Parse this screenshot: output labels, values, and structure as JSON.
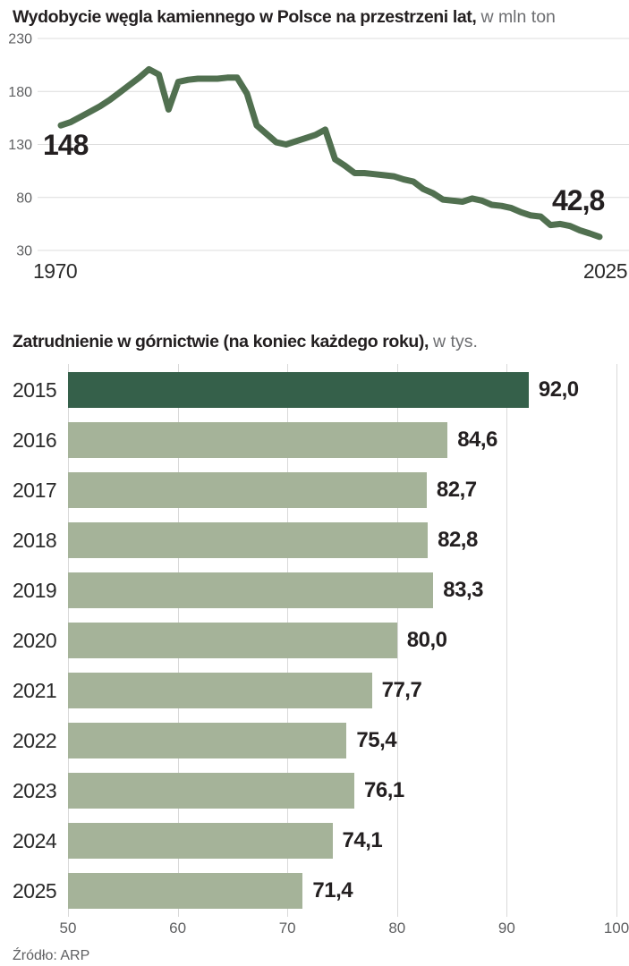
{
  "source": "Źródło: ARP",
  "chart_data": [
    {
      "type": "line",
      "title": "Wydobycie węgla kamiennego w Polsce na przestrzeni lat,",
      "unit": "w mln ton",
      "xlabel": "",
      "ylabel": "",
      "xlim": [
        1970,
        2025
      ],
      "ylim": [
        30,
        230
      ],
      "y_ticks": [
        230,
        180,
        130,
        80,
        30
      ],
      "x_tick_labels": [
        "1970",
        "2025"
      ],
      "grid": true,
      "legend": "none",
      "line_color": "#517050",
      "first_point_label": "148",
      "last_point_label": "42,8",
      "x": [
        1970,
        1971,
        1972,
        1973,
        1974,
        1975,
        1976,
        1977,
        1978,
        1979,
        1980,
        1981,
        1982,
        1983,
        1984,
        1985,
        1986,
        1987,
        1988,
        1989,
        1990,
        1991,
        1992,
        1993,
        1994,
        1995,
        1996,
        1997,
        1998,
        1999,
        2000,
        2001,
        2002,
        2003,
        2004,
        2005,
        2006,
        2007,
        2008,
        2009,
        2010,
        2011,
        2012,
        2013,
        2014,
        2015,
        2016,
        2017,
        2018,
        2019,
        2020,
        2021,
        2022,
        2023,
        2024,
        2025
      ],
      "values": [
        148,
        151,
        156,
        161,
        166,
        172,
        179,
        186,
        193,
        201,
        196,
        163,
        189,
        191,
        192,
        192,
        192,
        193,
        193,
        178,
        148,
        140,
        132,
        130,
        133,
        136,
        139,
        144,
        116,
        110,
        103,
        103,
        102,
        101,
        100,
        97,
        95,
        88,
        84,
        78,
        77,
        76,
        79,
        77,
        73,
        72,
        70,
        66,
        63,
        62,
        54,
        55,
        53,
        49,
        46,
        42.8
      ]
    },
    {
      "type": "bar",
      "orientation": "horizontal",
      "title": "Zatrudnienie w górnictwie (na koniec każdego roku),",
      "unit": "w tys.",
      "xlabel": "",
      "ylabel": "",
      "xlim": [
        50,
        100
      ],
      "x_ticks": [
        50,
        60,
        70,
        80,
        90,
        100
      ],
      "grid": true,
      "legend": "none",
      "categories": [
        "2015",
        "2016",
        "2017",
        "2018",
        "2019",
        "2020",
        "2021",
        "2022",
        "2023",
        "2024",
        "2025"
      ],
      "values": [
        92.0,
        84.6,
        82.7,
        82.8,
        83.3,
        80.0,
        77.7,
        75.4,
        76.1,
        74.1,
        71.4
      ],
      "value_labels": [
        "92,0",
        "84,6",
        "82,7",
        "82,8",
        "83,3",
        "80,0",
        "77,7",
        "75,4",
        "76,1",
        "74,1",
        "71,4"
      ],
      "highlight_index": 0,
      "highlight_color": "#35604a",
      "bar_color": "#a5b399"
    }
  ]
}
